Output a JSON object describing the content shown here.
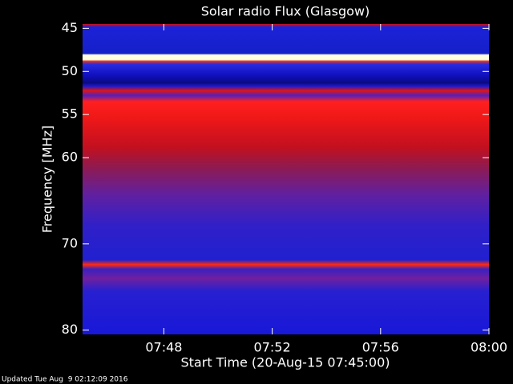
{
  "chart_data": {
    "type": "spectrogram",
    "title": "Solar radio Flux (Glasgow)",
    "x_label": "Start Time (20-Aug-15 07:45:00)",
    "y_label": "Frequency [MHz]",
    "xlim": [
      "07:45",
      "08:00"
    ],
    "xticks": [
      "07:48",
      "07:52",
      "07:56",
      "08:00"
    ],
    "ylim": [
      44.5,
      80.5
    ],
    "y_inverted": true,
    "yticks": [
      45,
      50,
      55,
      60,
      70,
      80
    ],
    "footer": "Updated Tue Aug  9 02:12:09 2016"
  }
}
